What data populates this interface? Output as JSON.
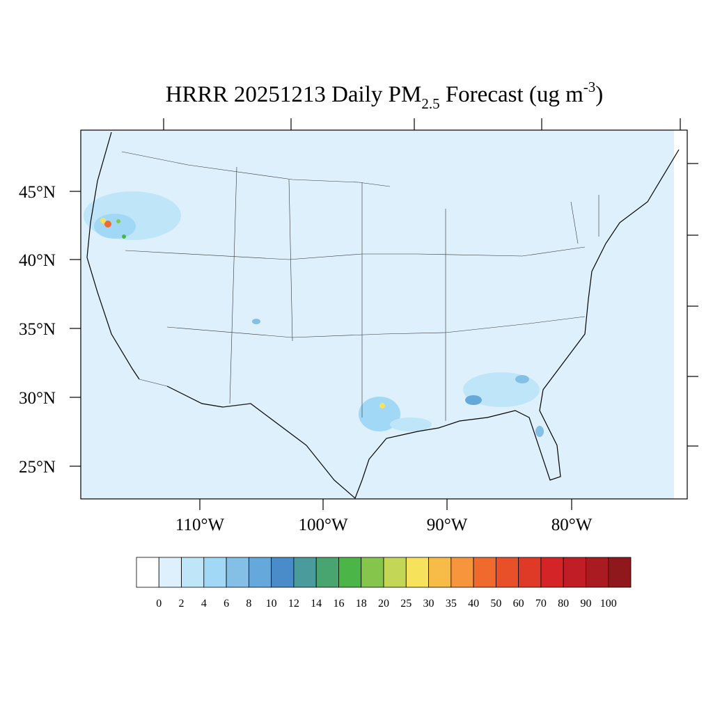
{
  "map": {
    "title": {
      "prefix": "HRRR 20251213 Daily PM",
      "subscript": "2.5",
      "middle": " Forecast (ug m",
      "superscript": "-3",
      "suffix": ")"
    },
    "lat_labels": [
      "45°N",
      "40°N",
      "35°N",
      "30°N",
      "25°N"
    ],
    "lon_labels": [
      "110°W",
      "100°W",
      "90°W",
      "80°W"
    ],
    "colorbar": {
      "levels": [
        0,
        2,
        4,
        6,
        8,
        10,
        12,
        14,
        16,
        18,
        20,
        25,
        30,
        35,
        40,
        50,
        60,
        70,
        80,
        90,
        100
      ],
      "colors": [
        "#ffffff",
        "#ddf0fb",
        "#bfe5f8",
        "#a1d8f5",
        "#84bfe6",
        "#65a8dc",
        "#4a8bc9",
        "#4a9b9b",
        "#48a56f",
        "#4bb548",
        "#86c54c",
        "#c4d656",
        "#f6e35b",
        "#f7bc47",
        "#f6953b",
        "#f06a2d",
        "#e8502a",
        "#de3a27",
        "#d42428",
        "#c01d27",
        "#aa1a21",
        "#8e181c"
      ]
    }
  }
}
